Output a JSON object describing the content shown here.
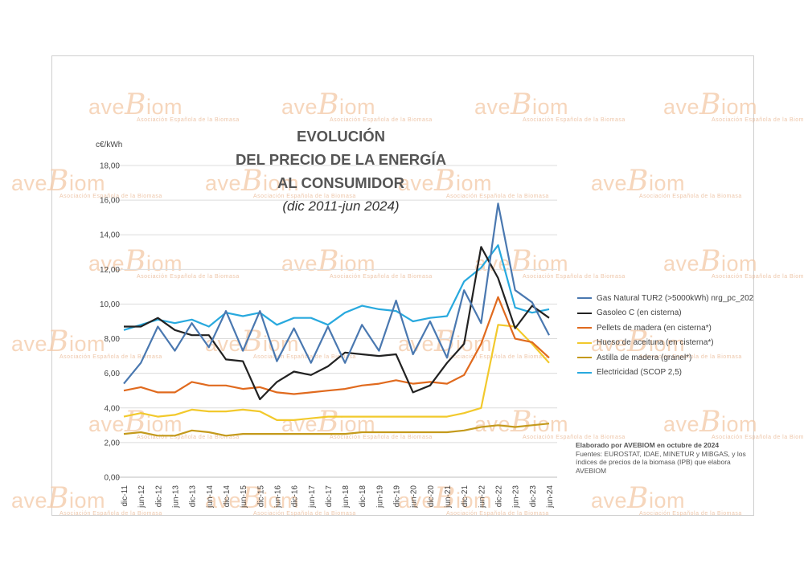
{
  "watermark": {
    "brand": "aveBiom",
    "tagline": "Asociación Española de la Biomasa"
  },
  "notes": {
    "credit": "Elaborado por AVEBIOM en octubre de 2024",
    "sources": "Fuentes: EUROSTAT, IDAE, MINETUR y MIBGAS, y los índices de precios de la biomasa (IPB) que elabora AVEBIOM"
  },
  "chart_data": {
    "type": "line",
    "title": [
      "EVOLUCIÓN",
      "DEL PRECIO DE LA ENERGÍA",
      "AL CONSUMIDOR"
    ],
    "subtitle": "(dic 2011-jun 2024)",
    "ylabel": "c€/kWh",
    "ylim": [
      0,
      18
    ],
    "yticks": [
      "0,00",
      "2,00",
      "4,00",
      "6,00",
      "8,00",
      "10,00",
      "12,00",
      "14,00",
      "16,00",
      "18,00"
    ],
    "grid": true,
    "legend_position": "right",
    "categories": [
      "dic-11",
      "jun-12",
      "dic-12",
      "jun-13",
      "dic-13",
      "jun-14",
      "dic-14",
      "jun-15",
      "dic-15",
      "jun-16",
      "dic-16",
      "jun-17",
      "dic-17",
      "jun-18",
      "dic-18",
      "jun-19",
      "dic-19",
      "jun-20",
      "dic-20",
      "jun-21",
      "dic-21",
      "jun-22",
      "dic-22",
      "jun-23",
      "dic-23",
      "jun-24"
    ],
    "series": [
      {
        "name": "Gas Natural TUR2 (>5000kWh) nrg_pc_202",
        "color": "#4a78b0",
        "values": [
          5.4,
          6.6,
          8.7,
          7.3,
          8.9,
          7.5,
          9.6,
          7.3,
          9.6,
          6.7,
          8.6,
          6.6,
          8.7,
          6.6,
          8.8,
          7.3,
          10.2,
          7.1,
          9.0,
          6.9,
          10.8,
          8.9,
          15.8,
          10.8,
          10.1,
          8.2
        ]
      },
      {
        "name": "Gasoleo C   (en cisterna)",
        "color": "#222222",
        "values": [
          8.7,
          8.7,
          9.2,
          8.5,
          8.2,
          8.2,
          6.8,
          6.7,
          4.5,
          5.5,
          6.1,
          5.9,
          6.4,
          7.2,
          7.1,
          7.0,
          7.1,
          4.9,
          5.3,
          6.6,
          7.7,
          13.3,
          11.5,
          8.6,
          9.9,
          9.2
        ]
      },
      {
        "name": "Pellets de madera (en cisterna*)",
        "color": "#e06a1e",
        "values": [
          5.0,
          5.2,
          4.9,
          4.9,
          5.5,
          5.3,
          5.3,
          5.1,
          5.2,
          4.9,
          4.8,
          4.9,
          5.0,
          5.1,
          5.3,
          5.4,
          5.6,
          5.4,
          5.5,
          5.4,
          5.9,
          7.7,
          10.4,
          8.0,
          7.8,
          6.9
        ]
      },
      {
        "name": "Hueso de aceituna (en cisterna*)",
        "color": "#f2c92c",
        "values": [
          3.5,
          3.7,
          3.5,
          3.6,
          3.9,
          3.8,
          3.8,
          3.9,
          3.8,
          3.3,
          3.3,
          3.4,
          3.5,
          3.5,
          3.5,
          3.5,
          3.5,
          3.5,
          3.5,
          3.5,
          3.7,
          4.0,
          8.8,
          8.7,
          7.7,
          6.6
        ]
      },
      {
        "name": "Astilla de madera (granel*)",
        "color": "#c49a1c",
        "values": [
          2.5,
          2.6,
          2.4,
          2.4,
          2.7,
          2.6,
          2.4,
          2.5,
          2.5,
          2.5,
          2.5,
          2.5,
          2.5,
          2.5,
          2.6,
          2.6,
          2.6,
          2.6,
          2.6,
          2.6,
          2.7,
          2.9,
          3.0,
          2.9,
          3.0,
          3.1
        ]
      },
      {
        "name": "Electricidad (SCOP 2,5)",
        "color": "#28a9de",
        "values": [
          8.5,
          8.8,
          9.1,
          8.9,
          9.1,
          8.7,
          9.5,
          9.3,
          9.5,
          8.8,
          9.2,
          9.2,
          8.8,
          9.5,
          9.9,
          9.7,
          9.6,
          9.0,
          9.2,
          9.3,
          11.3,
          12.1,
          13.4,
          9.8,
          9.5,
          9.7
        ]
      }
    ]
  }
}
